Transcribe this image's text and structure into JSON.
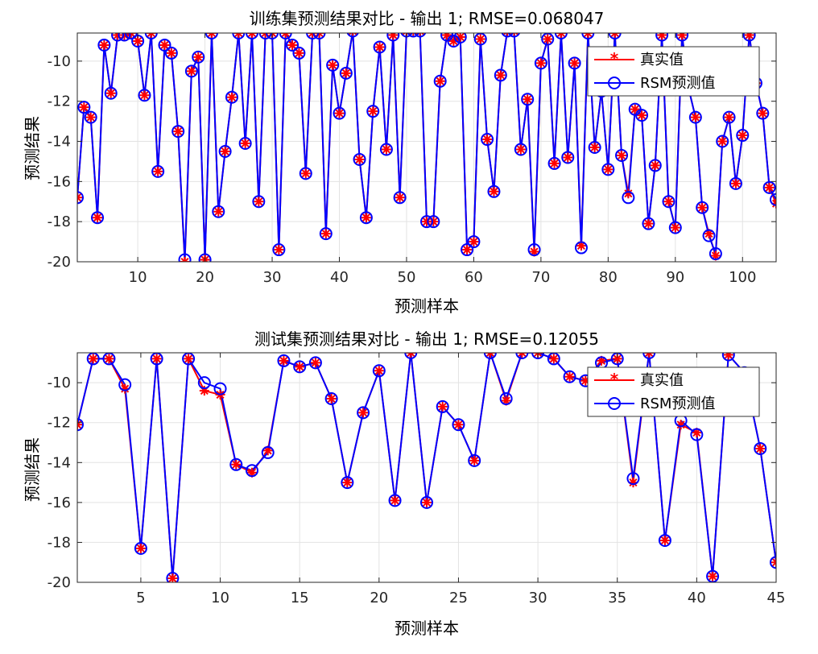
{
  "chart_data": [
    {
      "type": "line",
      "title": "训练集预测结果对比 - 输出 1; RMSE=0.068047",
      "xlabel": "预测样本",
      "ylabel": "预测结果",
      "xlim": [
        1,
        105
      ],
      "ylim": [
        -20,
        -8.6
      ],
      "xticks": [
        10,
        20,
        30,
        40,
        50,
        60,
        70,
        80,
        90,
        100
      ],
      "yticks": [
        -20,
        -18,
        -16,
        -14,
        -12,
        -10
      ],
      "grid": true,
      "legend_position": "top-right",
      "x": [
        1,
        2,
        3,
        4,
        5,
        6,
        7,
        8,
        9,
        10,
        11,
        12,
        13,
        14,
        15,
        16,
        17,
        18,
        19,
        20,
        21,
        22,
        23,
        24,
        25,
        26,
        27,
        28,
        29,
        30,
        31,
        32,
        33,
        34,
        35,
        36,
        37,
        38,
        39,
        40,
        41,
        42,
        43,
        44,
        45,
        46,
        47,
        48,
        49,
        50,
        51,
        52,
        53,
        54,
        55,
        56,
        57,
        58,
        59,
        60,
        61,
        62,
        63,
        64,
        65,
        66,
        67,
        68,
        69,
        70,
        71,
        72,
        73,
        74,
        75,
        76,
        77,
        78,
        79,
        80,
        81,
        82,
        83,
        84,
        85,
        86,
        87,
        88,
        89,
        90,
        91,
        92,
        93,
        94,
        95,
        96,
        97,
        98,
        99,
        100,
        101,
        102,
        103,
        104,
        105
      ],
      "series": [
        {
          "name": "真实值",
          "color": "#ff0000",
          "marker": "asterisk",
          "values": [
            -16.8,
            -12.3,
            -12.8,
            -17.8,
            -9.2,
            -11.6,
            -8.7,
            -8.7,
            -8.6,
            -9.0,
            -11.7,
            -8.6,
            -15.5,
            -9.2,
            -9.6,
            -13.5,
            -20.0,
            -10.5,
            -9.8,
            -19.9,
            -8.6,
            -17.5,
            -14.5,
            -11.8,
            -8.6,
            -14.1,
            -8.6,
            -17.0,
            -8.6,
            -8.6,
            -19.4,
            -8.6,
            -9.2,
            -9.6,
            -15.6,
            -8.6,
            -8.6,
            -18.6,
            -10.2,
            -12.6,
            -10.6,
            -8.5,
            -14.9,
            -17.8,
            -12.5,
            -9.3,
            -14.4,
            -8.7,
            -16.8,
            -8.5,
            -8.5,
            -8.5,
            -18.0,
            -18.0,
            -11.0,
            -8.7,
            -9.0,
            -8.8,
            -19.4,
            -19.0,
            -8.9,
            -13.9,
            -16.5,
            -10.7,
            -8.5,
            -8.5,
            -14.4,
            -11.9,
            -19.5,
            -10.1,
            -8.9,
            -15.1,
            -8.6,
            -14.8,
            -10.1,
            -19.2,
            -8.6,
            -14.3,
            -11.5,
            -15.4,
            -8.6,
            -14.7,
            -16.6,
            -12.4,
            -12.7,
            -18.1,
            -15.2,
            -8.7,
            -17.0,
            -18.3,
            -8.7,
            -11.4,
            -12.8,
            -17.3,
            -18.6,
            -19.7,
            -14.0,
            -12.8,
            -16.1,
            -13.7,
            -8.7,
            -11.1,
            -12.6,
            -16.3,
            -17.1
          ]
        },
        {
          "name": "RSM预测值",
          "color": "#0000ff",
          "marker": "circle",
          "values": [
            -16.8,
            -12.3,
            -12.8,
            -17.8,
            -9.2,
            -11.6,
            -8.7,
            -8.7,
            -8.6,
            -9.0,
            -11.7,
            -8.6,
            -15.5,
            -9.2,
            -9.6,
            -13.5,
            -19.9,
            -10.5,
            -9.8,
            -19.9,
            -8.6,
            -17.5,
            -14.5,
            -11.8,
            -8.6,
            -14.1,
            -8.6,
            -17.0,
            -8.6,
            -8.6,
            -19.4,
            -8.6,
            -9.2,
            -9.6,
            -15.6,
            -8.6,
            -8.6,
            -18.6,
            -10.2,
            -12.6,
            -10.6,
            -8.5,
            -14.9,
            -17.8,
            -12.5,
            -9.3,
            -14.4,
            -8.7,
            -16.8,
            -8.5,
            -8.5,
            -8.5,
            -18.0,
            -18.0,
            -11.0,
            -8.7,
            -9.0,
            -8.8,
            -19.4,
            -19.0,
            -8.9,
            -13.9,
            -16.5,
            -10.7,
            -8.5,
            -8.5,
            -14.4,
            -11.9,
            -19.4,
            -10.1,
            -8.9,
            -15.1,
            -8.6,
            -14.8,
            -10.1,
            -19.3,
            -8.6,
            -14.3,
            -11.5,
            -15.4,
            -8.6,
            -14.7,
            -16.8,
            -12.4,
            -12.7,
            -18.1,
            -15.2,
            -8.7,
            -17.0,
            -18.3,
            -8.7,
            -11.4,
            -12.8,
            -17.3,
            -18.7,
            -19.6,
            -14.0,
            -12.8,
            -16.1,
            -13.7,
            -8.7,
            -11.1,
            -12.6,
            -16.3,
            -16.9
          ]
        }
      ]
    },
    {
      "type": "line",
      "title": "测试集预测结果对比 - 输出 1; RMSE=0.12055",
      "xlabel": "预测样本",
      "ylabel": "预测结果",
      "xlim": [
        1,
        45
      ],
      "ylim": [
        -20,
        -8.5
      ],
      "xticks": [
        5,
        10,
        15,
        20,
        25,
        30,
        35,
        40,
        45
      ],
      "yticks": [
        -20,
        -18,
        -16,
        -14,
        -12,
        -10
      ],
      "grid": true,
      "legend_position": "top-right",
      "x": [
        1,
        2,
        3,
        4,
        5,
        6,
        7,
        8,
        9,
        10,
        11,
        12,
        13,
        14,
        15,
        16,
        17,
        18,
        19,
        20,
        21,
        22,
        23,
        24,
        25,
        26,
        27,
        28,
        29,
        30,
        31,
        32,
        33,
        34,
        35,
        36,
        37,
        38,
        39,
        40,
        41,
        42,
        43,
        44,
        45
      ],
      "series": [
        {
          "name": "真实值",
          "color": "#ff0000",
          "marker": "asterisk",
          "values": [
            -12.1,
            -8.8,
            -8.8,
            -10.3,
            -18.3,
            -8.8,
            -19.8,
            -8.8,
            -10.4,
            -10.6,
            -14.1,
            -14.5,
            -13.4,
            -8.9,
            -9.2,
            -9.0,
            -10.8,
            -15.0,
            -11.5,
            -9.4,
            -15.9,
            -8.5,
            -16.0,
            -11.2,
            -12.1,
            -13.9,
            -8.5,
            -10.9,
            -8.5,
            -8.5,
            -8.8,
            -9.7,
            -9.9,
            -8.9,
            -8.8,
            -15.0,
            -8.5,
            -17.9,
            -12.1,
            -12.5,
            -19.7,
            -8.6,
            -9.5,
            -13.3,
            -19.0
          ]
        },
        {
          "name": "RSM预测值",
          "color": "#0000ff",
          "marker": "circle",
          "values": [
            -12.1,
            -8.8,
            -8.8,
            -10.1,
            -18.3,
            -8.8,
            -19.8,
            -8.8,
            -10.0,
            -10.3,
            -14.1,
            -14.4,
            -13.5,
            -8.9,
            -9.2,
            -9.0,
            -10.8,
            -15.0,
            -11.5,
            -9.4,
            -15.9,
            -8.5,
            -16.0,
            -11.2,
            -12.1,
            -13.9,
            -8.5,
            -10.8,
            -8.5,
            -8.5,
            -8.8,
            -9.7,
            -9.9,
            -9.0,
            -8.8,
            -14.8,
            -8.5,
            -17.9,
            -11.9,
            -12.6,
            -19.7,
            -8.6,
            -9.5,
            -13.3,
            -19.0
          ]
        }
      ]
    }
  ]
}
